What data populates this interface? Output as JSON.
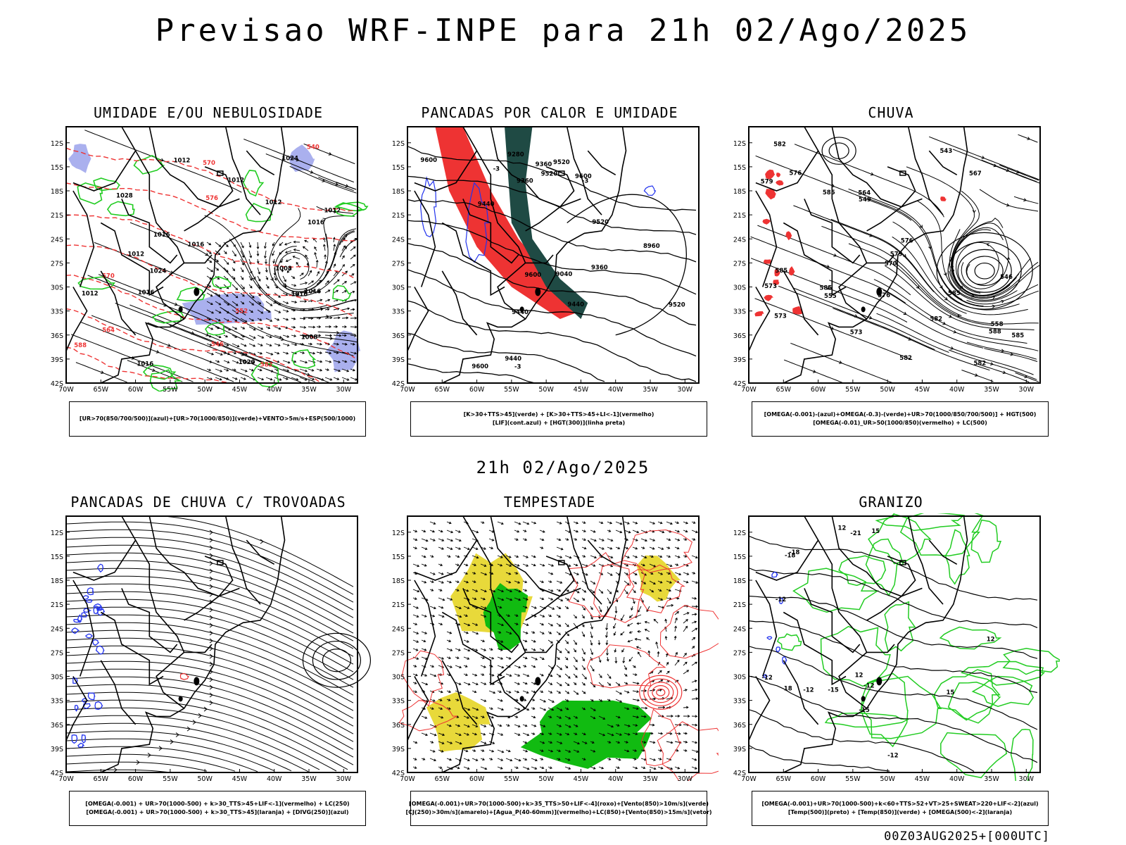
{
  "title": "Previsao WRF-INPE  para 21h 02/Ago/2025",
  "middle_title": "21h 02/Ago/2025",
  "footer": "00Z03AUG2025+[000UTC]",
  "axes": {
    "lat_labels": [
      "12S",
      "15S",
      "18S",
      "21S",
      "24S",
      "27S",
      "30S",
      "33S",
      "36S",
      "39S",
      "42S"
    ],
    "lon_labels": [
      "70W",
      "65W",
      "60W",
      "55W",
      "50W",
      "45W",
      "40W",
      "35W",
      "30W"
    ]
  },
  "colors": {
    "black": "#000000",
    "green": "#22cc22",
    "bright_green": "#11bb11",
    "red": "#ee3333",
    "blue": "#2233ee",
    "lavender": "#aab0ee",
    "dark_teal": "#1f4a44",
    "yellow": "#e8d93a"
  },
  "panels": [
    {
      "title": "UMIDADE E/OU NEBULOSIDADE",
      "legend": [
        "[UR>70(850/700/500)](azul)+[UR>70(1000/850)](verde)+VENTO>5m/s+ESP(500/1000)"
      ],
      "labels": [
        "1012",
        "1016",
        "1016",
        "1016",
        "1024",
        "1020",
        "1016",
        "1024",
        "1028",
        "1008",
        "1012",
        "1016",
        "1012",
        "1016",
        "1012",
        "1012",
        "1016",
        "1012",
        "1008",
        "570",
        "564",
        "570",
        "576",
        "582",
        "588",
        "552",
        "546",
        "540"
      ]
    },
    {
      "title": "PANCADAS POR CALOR E UMIDADE",
      "legend": [
        "[K>30+TTS>45](verde) + [K>30+TTS>45+LI<-1](vermelho)",
        "[LIF](cont.azul) + [HGT(300)](linha preta)"
      ],
      "labels": [
        "9600",
        "9600",
        "9440",
        "9520",
        "9600",
        "9600",
        "9520",
        "9360",
        "9440",
        "9520",
        "9360",
        "9280",
        "9440",
        "9520",
        "9360",
        "9040",
        "9440",
        "8960",
        "-3",
        "-3",
        "-3"
      ]
    },
    {
      "title": "CHUVA",
      "legend": [
        "[OMEGA(-0.001)-(azul)+OMEGA(-0.3)-(verde)+UR>70(1000/850/700/500)] + HGT(500)",
        "[OMEGA(-0.01)_UR>50(1000/850)(vermelho) + LC(500)"
      ],
      "labels": [
        "585",
        "585",
        "582",
        "582",
        "585",
        "582",
        "585",
        "576",
        "573",
        "576",
        "579",
        "570",
        "573",
        "567",
        "564",
        "558",
        "555",
        "549",
        "546",
        "543",
        "582",
        "579",
        "576",
        "573",
        "585",
        "588"
      ]
    },
    {
      "title": "PANCADAS DE CHUVA C/ TROVOADAS",
      "legend": [
        "[OMEGA(-0.001) + UR>70(1000-500) + k>30_TTS>45+LIF<-1](vermelho) + LC(250)",
        "[OMEGA(-0.001) + UR>70(1000-500) + k>30_TTS>45](laranja) + [DIVG(250)](azul)"
      ],
      "labels": []
    },
    {
      "title": "TEMPESTADE",
      "legend": [
        "[OMEGA(-0.001)+UR>70(1000-500)+k>35_TTS>50+LIF<-4](roxo)+[Vento(850)>10m/s](verde)",
        "[CJ(250)>30m/s](amarelo)+[Agua_P(40-60mm)](vermelho)+LC(850)+[Vento(850)>15m/s](vetor)"
      ],
      "labels": []
    },
    {
      "title": "GRANIZO",
      "legend": [
        "[OMEGA(-0.001)+UR>70(1000-500)+k<60+TTS>52+VT>25+SWEAT>220+LIF<-2](azul)",
        "[Temp(500)](preto) + [Temp(850)](verde) + [OMEGA(500)<-2](laranja)"
      ],
      "labels": [
        "-12",
        "-12",
        "-12",
        "-12",
        "-15",
        "-15",
        "-12",
        "12",
        "12",
        "15",
        "18",
        "-18",
        "-21",
        "-18",
        "12",
        "15"
      ]
    }
  ]
}
